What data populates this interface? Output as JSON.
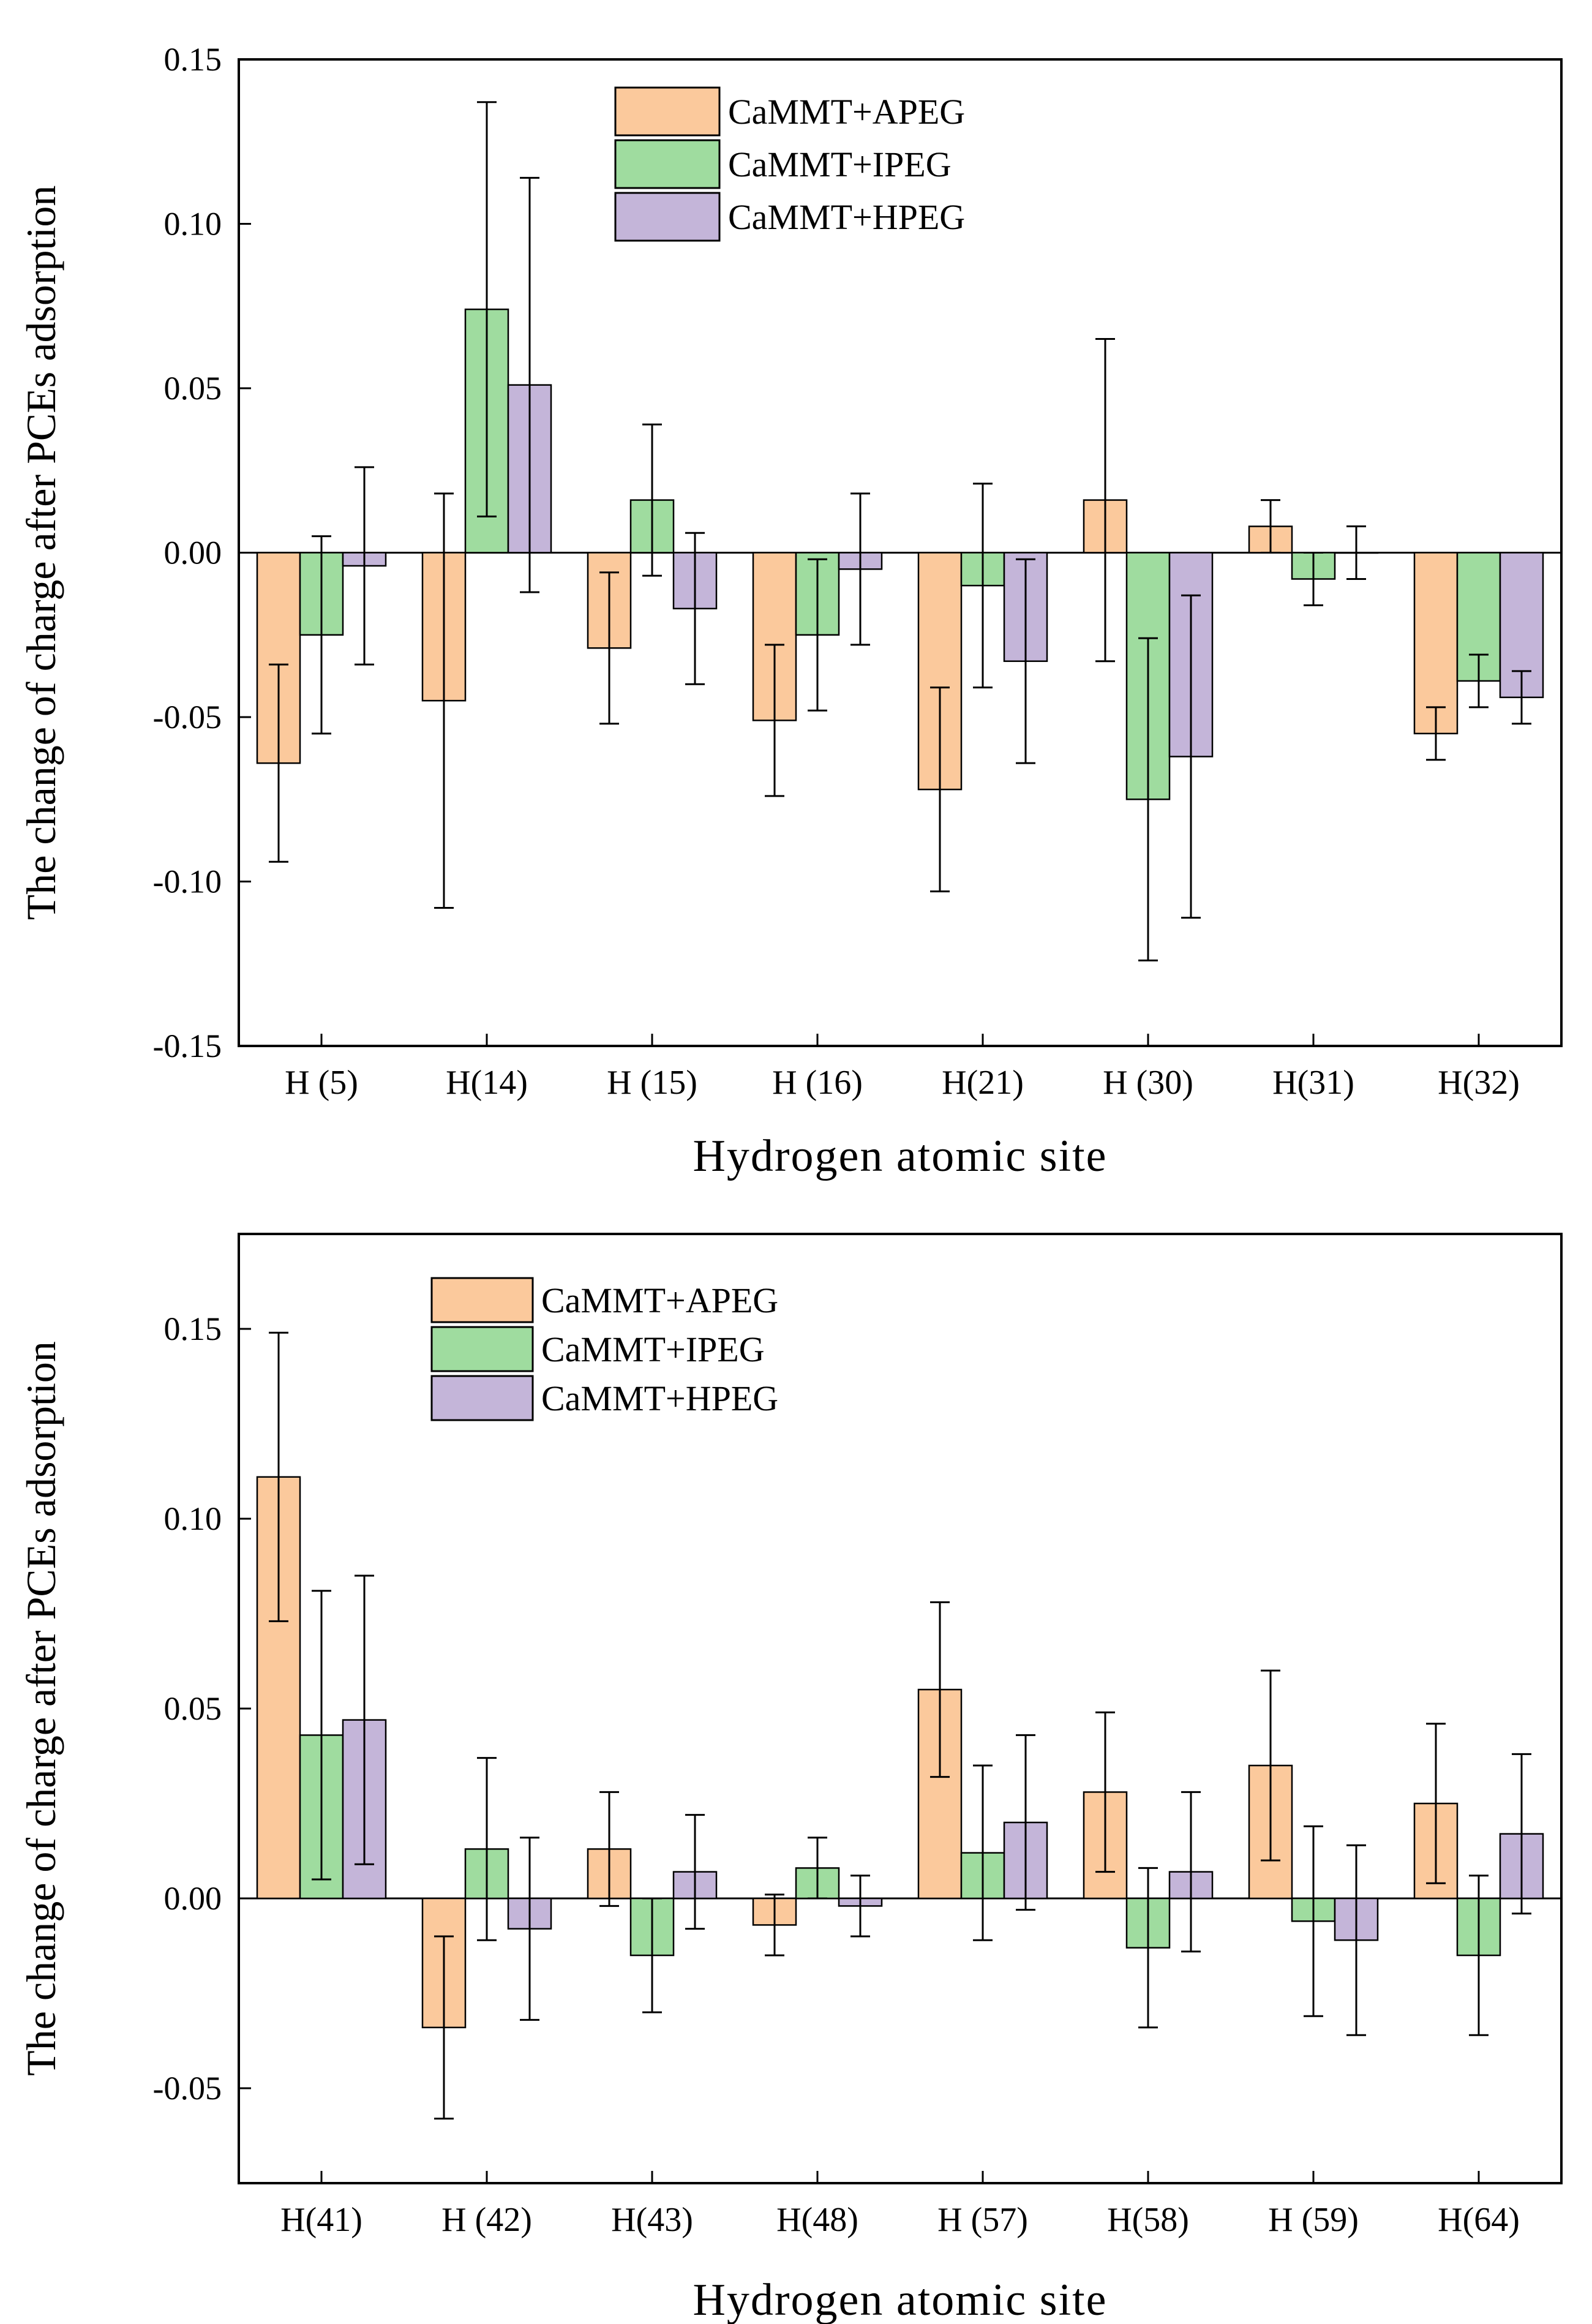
{
  "colors": {
    "apeg_fill": "#fbc99c",
    "ipeg_fill": "#9fdc9f",
    "hpeg_fill": "#c4b5d9",
    "stroke": "#000000"
  },
  "chart_data": [
    {
      "type": "bar",
      "xlabel": "Hydrogen atomic site",
      "ylabel": "The change of charge after PCEs adsorption",
      "ylim": [
        -0.15,
        0.15
      ],
      "yticks": [
        -0.15,
        -0.1,
        -0.05,
        0.0,
        0.05,
        0.1,
        0.15
      ],
      "ytick_labels": [
        "-0.15",
        "-0.10",
        "-0.05",
        "0.00",
        "0.05",
        "0.10",
        "0.15"
      ],
      "legend_position": "top-center",
      "categories": [
        "H (5)",
        "H(14)",
        "H (15)",
        "H (16)",
        "H(21)",
        "H (30)",
        "H(31)",
        "H(32)"
      ],
      "series": [
        {
          "name": "CaMMT+APEG",
          "values": [
            -0.064,
            -0.045,
            -0.029,
            -0.051,
            -0.072,
            0.016,
            0.008,
            -0.055
          ],
          "errors": [
            0.03,
            0.063,
            0.023,
            0.023,
            0.031,
            0.049,
            0.008,
            0.008
          ]
        },
        {
          "name": "CaMMT+IPEG",
          "values": [
            -0.025,
            0.074,
            0.016,
            -0.025,
            -0.01,
            -0.075,
            -0.008,
            -0.039
          ],
          "errors": [
            0.03,
            0.063,
            0.023,
            0.023,
            0.031,
            0.049,
            0.008,
            0.008
          ]
        },
        {
          "name": "CaMMT+HPEG",
          "values": [
            -0.004,
            0.051,
            -0.017,
            -0.005,
            -0.033,
            -0.062,
            0.0,
            -0.044
          ],
          "errors": [
            0.03,
            0.063,
            0.023,
            0.023,
            0.031,
            0.049,
            0.008,
            0.008
          ]
        }
      ]
    },
    {
      "type": "bar",
      "xlabel": "Hydrogen atomic site",
      "ylabel": "The change of charge after PCEs adsorption",
      "ylim": [
        -0.075,
        0.175
      ],
      "yticks": [
        -0.05,
        0.0,
        0.05,
        0.1,
        0.15
      ],
      "ytick_labels": [
        "-0.05",
        "0.00",
        "0.05",
        "0.10",
        "0.15"
      ],
      "legend_position": "top-left",
      "categories": [
        "H(41)",
        "H (42)",
        "H(43)",
        "H(48)",
        "H (57)",
        "H(58)",
        "H (59)",
        "H(64)"
      ],
      "series": [
        {
          "name": "CaMMT+APEG",
          "values": [
            0.111,
            -0.034,
            0.013,
            -0.007,
            0.055,
            0.028,
            0.035,
            0.025
          ],
          "errors": [
            0.038,
            0.024,
            0.015,
            0.008,
            0.023,
            0.021,
            0.025,
            0.021
          ]
        },
        {
          "name": "CaMMT+IPEG",
          "values": [
            0.043,
            0.013,
            -0.015,
            0.008,
            0.012,
            -0.013,
            -0.006,
            -0.015
          ],
          "errors": [
            0.038,
            0.024,
            0.015,
            0.008,
            0.023,
            0.021,
            0.025,
            0.021
          ]
        },
        {
          "name": "CaMMT+HPEG",
          "values": [
            0.047,
            -0.008,
            0.007,
            -0.002,
            0.02,
            0.007,
            -0.011,
            0.017
          ],
          "errors": [
            0.038,
            0.024,
            0.015,
            0.008,
            0.023,
            0.021,
            0.025,
            0.021
          ]
        }
      ]
    }
  ]
}
